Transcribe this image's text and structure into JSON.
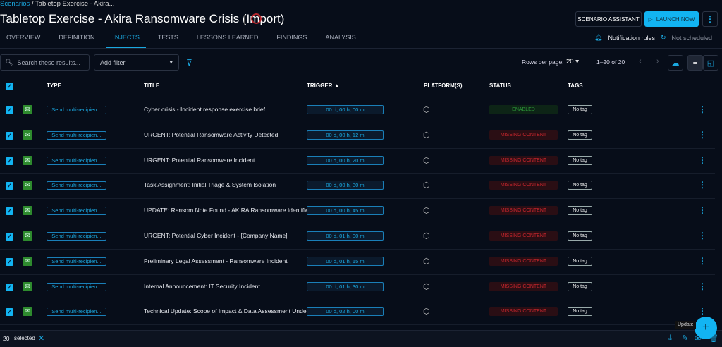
{
  "breadcrumb": {
    "root": "Scenarios",
    "current": "Tabletop Exercise - Akira..."
  },
  "title": "Tabletop Exercise - Akira Ransomware Crisis (Import)",
  "header": {
    "assistant": "SCENARIO ASSISTANT",
    "launch": "LAUNCH NOW",
    "notif": "Notification rules",
    "schedule": "Not scheduled"
  },
  "tabs": [
    "OVERVIEW",
    "DEFINITION",
    "INJECTS",
    "TESTS",
    "LESSONS LEARNED",
    "FINDINGS",
    "ANALYSIS"
  ],
  "active_tab": "INJECTS",
  "toolbar": {
    "search_placeholder": "Search these results...",
    "filter": "Add filter",
    "rows_label": "Rows per page:",
    "rows_value": "20",
    "range": "1–20 of 20"
  },
  "columns": {
    "type": "TYPE",
    "title": "TITLE",
    "trigger": "TRIGGER",
    "platforms": "PLATFORM(S)",
    "status": "STATUS",
    "tags": "TAGS"
  },
  "colors": {
    "accent": "#12b4f2",
    "enabled": "#2e9d3a",
    "missing": "#c9262d"
  },
  "rows": [
    {
      "type": "Send multi-recipien...",
      "title": "Cyber crisis - Incident response exercise brief",
      "trigger": "00 d, 00 h, 00 m",
      "status": "ENABLED",
      "tag": "No tag"
    },
    {
      "type": "Send multi-recipien...",
      "title": "URGENT: Potential Ransomware Activity Detected",
      "trigger": "00 d, 00 h, 12 m",
      "status": "MISSING CONTENT",
      "tag": "No tag"
    },
    {
      "type": "Send multi-recipien...",
      "title": "URGENT: Potential Ransomware Incident",
      "trigger": "00 d, 00 h, 20 m",
      "status": "MISSING CONTENT",
      "tag": "No tag"
    },
    {
      "type": "Send multi-recipien...",
      "title": "Task Assignment: Initial Triage & System Isolation",
      "trigger": "00 d, 00 h, 30 m",
      "status": "MISSING CONTENT",
      "tag": "No tag"
    },
    {
      "type": "Send multi-recipien...",
      "title": "UPDATE: Ransom Note Found - AKIRA Ransomware Identified",
      "trigger": "00 d, 00 h, 45 m",
      "status": "MISSING CONTENT",
      "tag": "No tag"
    },
    {
      "type": "Send multi-recipien...",
      "title": "URGENT: Potential Cyber Incident - [Company Name]",
      "trigger": "00 d, 01 h, 00 m",
      "status": "MISSING CONTENT",
      "tag": "No tag"
    },
    {
      "type": "Send multi-recipien...",
      "title": "Preliminary Legal Assessment - Ransomware Incident",
      "trigger": "00 d, 01 h, 15 m",
      "status": "MISSING CONTENT",
      "tag": "No tag"
    },
    {
      "type": "Send multi-recipien...",
      "title": "Internal Announcement: IT Security Incident",
      "trigger": "00 d, 01 h, 30 m",
      "status": "MISSING CONTENT",
      "tag": "No tag"
    },
    {
      "type": "Send multi-recipien...",
      "title": "Technical Update: Scope of Impact & Data Assessment Under...",
      "trigger": "00 d, 02 h, 00 m",
      "status": "MISSING CONTENT",
      "tag": "No tag"
    }
  ],
  "bottom": {
    "count": "20",
    "selected": "selected",
    "tooltip": "Update"
  }
}
